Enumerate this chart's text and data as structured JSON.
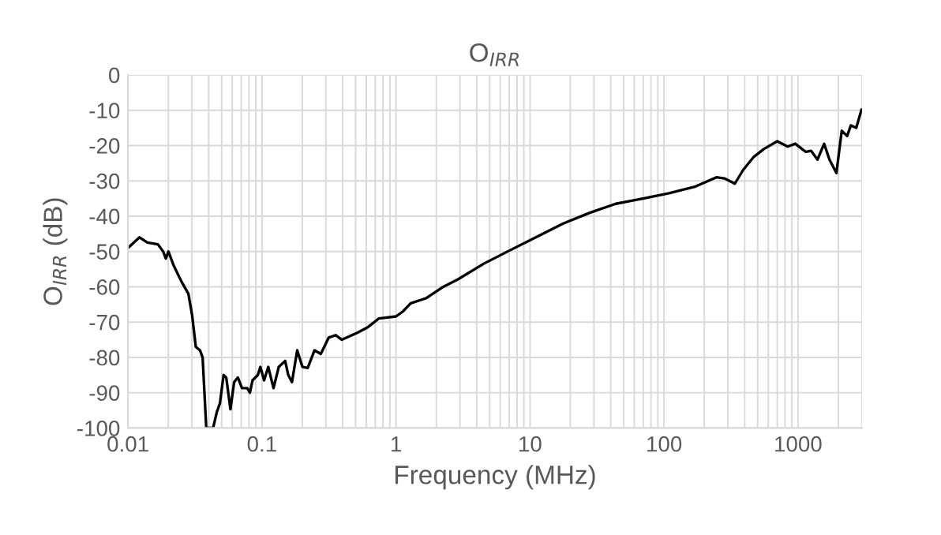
{
  "chart_data": {
    "type": "line",
    "title": "O$_{IRR}$",
    "xlabel": "Frequency (MHz)",
    "ylabel": "O$_{IRR}$ (dB)",
    "log": "x",
    "grid": true,
    "legend": false,
    "xlim": [
      0.01,
      3000
    ],
    "xticks": [
      0.01,
      0.1,
      1,
      10,
      100,
      1000
    ],
    "ylim": [
      -100,
      0
    ],
    "yticks": [
      -100,
      -90,
      -80,
      -70,
      -60,
      -50,
      -40,
      -30,
      -20,
      -10,
      0
    ],
    "series": [
      {
        "color": "#000000",
        "x": [
          0.01,
          0.0122,
          0.01397,
          0.01673,
          0.0183,
          0.01916,
          0.02004,
          0.02193,
          0.02512,
          0.02825,
          0.03009,
          0.03206,
          0.03445,
          0.03606,
          0.03839,
          0.04317,
          0.046,
          0.04856,
          0.0517,
          0.0541,
          0.05817,
          0.06194,
          0.06603,
          0.07096,
          0.07762,
          0.08128,
          0.08497,
          0.0931,
          0.0973,
          0.1037,
          0.1114,
          0.1219,
          0.1334,
          0.1489,
          0.1571,
          0.1674,
          0.1832,
          0.2004,
          0.2193,
          0.2466,
          0.2748,
          0.3148,
          0.354,
          0.3945,
          0.5176,
          0.6194,
          0.743,
          1.0,
          1.125,
          1.288,
          1.688,
          2.21,
          2.9,
          4.55,
          7.15,
          11.2,
          17.7,
          27.7,
          43.6,
          69.7,
          109,
          172,
          246,
          282,
          338,
          388,
          465,
          556,
          699,
          838,
          954,
          1144,
          1253,
          1396,
          1567,
          1716,
          1934,
          2120,
          2325,
          2480,
          2720,
          2980
        ],
        "values": [
          -49,
          -46,
          -47.5,
          -48,
          -50,
          -52,
          -50,
          -54,
          -58.6,
          -62,
          -68,
          -77,
          -78,
          -80,
          -100,
          -100,
          -95.5,
          -93,
          -85,
          -85.7,
          -94.7,
          -87,
          -85.7,
          -88.7,
          -88.7,
          -90,
          -86.5,
          -85,
          -82.7,
          -86.5,
          -82.7,
          -88.7,
          -82.7,
          -81,
          -85,
          -87,
          -78,
          -82.7,
          -83,
          -78,
          -79,
          -74.4,
          -73.7,
          -75,
          -73,
          -71.4,
          -69,
          -68.4,
          -67,
          -64.7,
          -63.2,
          -60.2,
          -57.9,
          -53.4,
          -49.6,
          -45.9,
          -42.1,
          -39.1,
          -36.5,
          -35,
          -33.5,
          -31.6,
          -29,
          -29.3,
          -30.8,
          -27,
          -23.3,
          -21,
          -18.8,
          -20.3,
          -19.5,
          -21.8,
          -21.5,
          -24,
          -19.5,
          -24,
          -27.8,
          -15.8,
          -17.3,
          -14.3,
          -15,
          -9.8
        ]
      }
    ]
  }
}
